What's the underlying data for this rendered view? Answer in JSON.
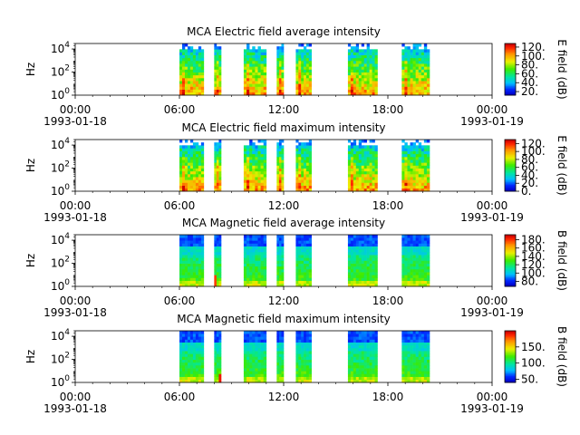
{
  "chart_data": [
    {
      "type": "heatmap",
      "title": "MCA  Electric field average intensity",
      "ylabel": "Hz",
      "yscale": "log",
      "ylim": [
        1,
        30000
      ],
      "y_ticks": [
        {
          "exp": "0"
        },
        {
          "exp": "2"
        },
        {
          "exp": "4"
        }
      ],
      "x_ticks": [
        "00:00",
        "06:00",
        "12:00",
        "18:00",
        "00:00"
      ],
      "x_dates": [
        "1993-01-18",
        "1993-01-19"
      ],
      "xlim_hours": [
        0,
        24
      ],
      "colorbar": {
        "label": "E field (dB)",
        "ticks": [
          "20.",
          "40.",
          "60.",
          "80.",
          "100.",
          "120."
        ],
        "range": [
          12,
          128
        ],
        "scheme": "rainbow"
      },
      "data_hours": [
        [
          6.0,
          7.4
        ],
        [
          8.0,
          8.4
        ],
        [
          9.7,
          11.0
        ],
        [
          11.6,
          12.0
        ],
        [
          12.7,
          13.6
        ],
        [
          15.7,
          17.4
        ],
        [
          18.8,
          20.4
        ]
      ],
      "style": "electric"
    },
    {
      "type": "heatmap",
      "title": "MCA  Electric field maximum intensity",
      "ylabel": "Hz",
      "yscale": "log",
      "ylim": [
        1,
        30000
      ],
      "y_ticks": [
        {
          "exp": "0"
        },
        {
          "exp": "2"
        },
        {
          "exp": "4"
        }
      ],
      "x_ticks": [
        "00:00",
        "06:00",
        "12:00",
        "18:00",
        "00:00"
      ],
      "x_dates": [
        "1993-01-18",
        "1993-01-19"
      ],
      "xlim_hours": [
        0,
        24
      ],
      "colorbar": {
        "label": "E field (dB)",
        "ticks": [
          "0.",
          "20.",
          "40.",
          "60.",
          "80.",
          "100.",
          "120."
        ],
        "range": [
          0,
          130
        ],
        "scheme": "rainbow"
      },
      "data_hours": [
        [
          6.0,
          7.4
        ],
        [
          8.0,
          8.4
        ],
        [
          9.7,
          11.0
        ],
        [
          11.6,
          12.0
        ],
        [
          12.7,
          13.6
        ],
        [
          15.7,
          17.4
        ],
        [
          18.8,
          20.4
        ]
      ],
      "style": "electric"
    },
    {
      "type": "heatmap",
      "title": "MCA  Magnetic field average intensity",
      "ylabel": "Hz",
      "yscale": "log",
      "ylim": [
        1,
        30000
      ],
      "y_ticks": [
        {
          "exp": "0"
        },
        {
          "exp": "2"
        },
        {
          "exp": "4"
        }
      ],
      "x_ticks": [
        "00:00",
        "06:00",
        "12:00",
        "18:00",
        "00:00"
      ],
      "x_dates": [
        "1993-01-18",
        "1993-01-19"
      ],
      "xlim_hours": [
        0,
        24
      ],
      "colorbar": {
        "label": "B field (dB)",
        "ticks": [
          "80.",
          "100.",
          "120.",
          "140.",
          "160.",
          "180."
        ],
        "range": [
          68,
          192
        ],
        "scheme": "rainbow"
      },
      "data_hours": [
        [
          6.0,
          7.4
        ],
        [
          8.0,
          8.4
        ],
        [
          9.7,
          11.0
        ],
        [
          11.6,
          12.0
        ],
        [
          12.7,
          13.6
        ],
        [
          15.7,
          17.4
        ],
        [
          18.8,
          20.4
        ]
      ],
      "style": "magnetic"
    },
    {
      "type": "heatmap",
      "title": "MCA  Magnetic field maximum intensity",
      "ylabel": "Hz",
      "yscale": "log",
      "ylim": [
        1,
        30000
      ],
      "y_ticks": [
        {
          "exp": "0"
        },
        {
          "exp": "2"
        },
        {
          "exp": "4"
        }
      ],
      "x_ticks": [
        "00:00",
        "06:00",
        "12:00",
        "18:00",
        "00:00"
      ],
      "x_dates": [
        "1993-01-18",
        "1993-01-19"
      ],
      "xlim_hours": [
        0,
        24
      ],
      "colorbar": {
        "label": "B field (dB)",
        "ticks": [
          "50.",
          "100.",
          "150."
        ],
        "range": [
          40,
          200
        ],
        "scheme": "rainbow"
      },
      "data_hours": [
        [
          6.0,
          7.4
        ],
        [
          8.0,
          8.4
        ],
        [
          9.7,
          11.0
        ],
        [
          11.6,
          12.0
        ],
        [
          12.7,
          13.6
        ],
        [
          15.7,
          17.4
        ],
        [
          18.8,
          20.4
        ]
      ],
      "style": "magnetic"
    }
  ]
}
